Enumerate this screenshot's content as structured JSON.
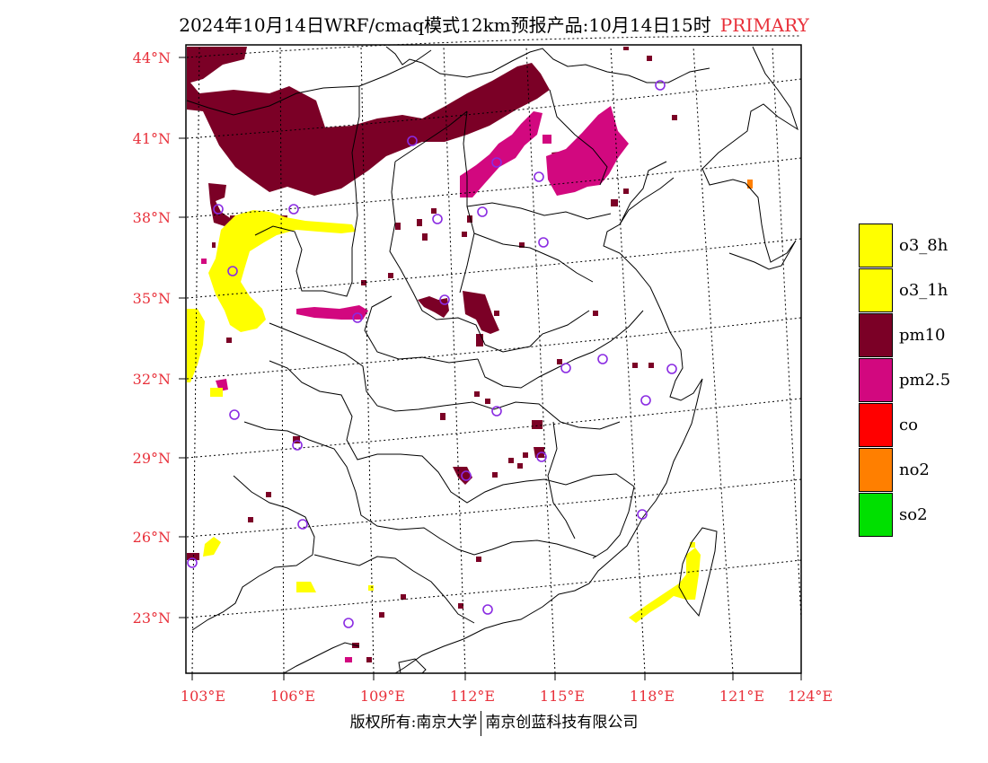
{
  "title": {
    "main": "2024年10月14日WRF/cmaq模式12km预报产品:10月14日15时",
    "tag": "PRIMARY",
    "tag_color": "#e8303a"
  },
  "lat_labels": [
    "44°N",
    "41°N",
    "38°N",
    "35°N",
    "32°N",
    "29°N",
    "26°N",
    "23°N"
  ],
  "lon_labels": [
    "103°E",
    "106°E",
    "109°E",
    "112°E",
    "115°E",
    "118°E",
    "121°E",
    "124°E"
  ],
  "legend": [
    {
      "label": "o3_8h",
      "color": "#ffff00"
    },
    {
      "label": "o3_1h",
      "color": "#ffff00"
    },
    {
      "label": "pm10",
      "color": "#7b0026"
    },
    {
      "label": "pm2.5",
      "color": "#d2087f"
    },
    {
      "label": "co",
      "color": "#ff0000"
    },
    {
      "label": "no2",
      "color": "#ff7f00"
    },
    {
      "label": "so2",
      "color": "#00e000"
    }
  ],
  "footer": {
    "left": "版权所有:南京大学",
    "right": "南京创蓝科技有限公司"
  },
  "map": {
    "lon_range": [
      102.7,
      124
    ],
    "lat_range": [
      21,
      44.5
    ],
    "pollutant_colors": {
      "pm10": "#7b0026",
      "pm25": "#d2087f",
      "o3": "#ffff00",
      "no2": "#ff7f00"
    },
    "station_color": "#8a2be2"
  }
}
